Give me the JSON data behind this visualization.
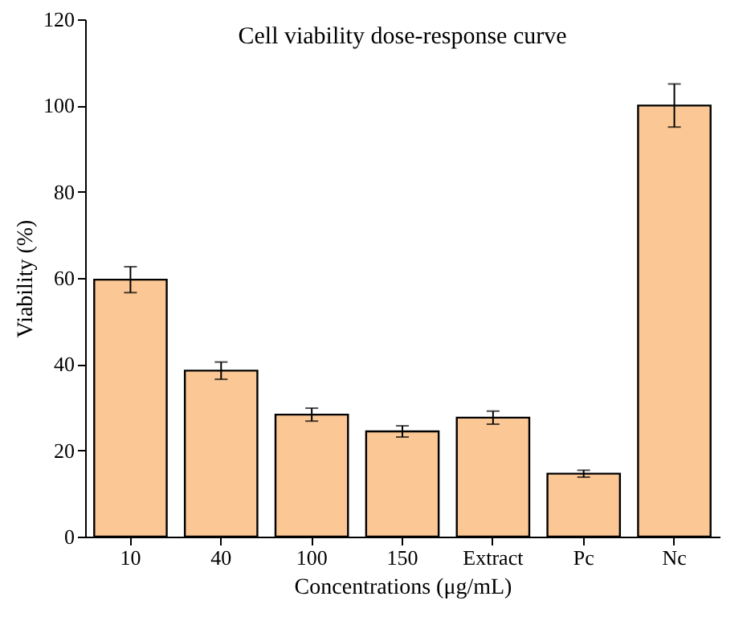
{
  "chart_data": {
    "type": "bar",
    "title": "Cell viability dose-response curve",
    "xlabel": "Concentrations (μg/mL)",
    "ylabel": "Viability (%)",
    "categories": [
      "10",
      "40",
      "100",
      "150",
      "Extract",
      "Pc",
      "Nc"
    ],
    "values": [
      59.6,
      38.5,
      28.3,
      24.4,
      27.6,
      14.6,
      100
    ],
    "errors": [
      3,
      2,
      1.5,
      1.3,
      1.5,
      0.8,
      5
    ],
    "color": "#fbc795",
    "ylim": [
      0,
      120
    ],
    "yticks": [
      0,
      20,
      40,
      60,
      80,
      100,
      120
    ],
    "grid": false
  }
}
